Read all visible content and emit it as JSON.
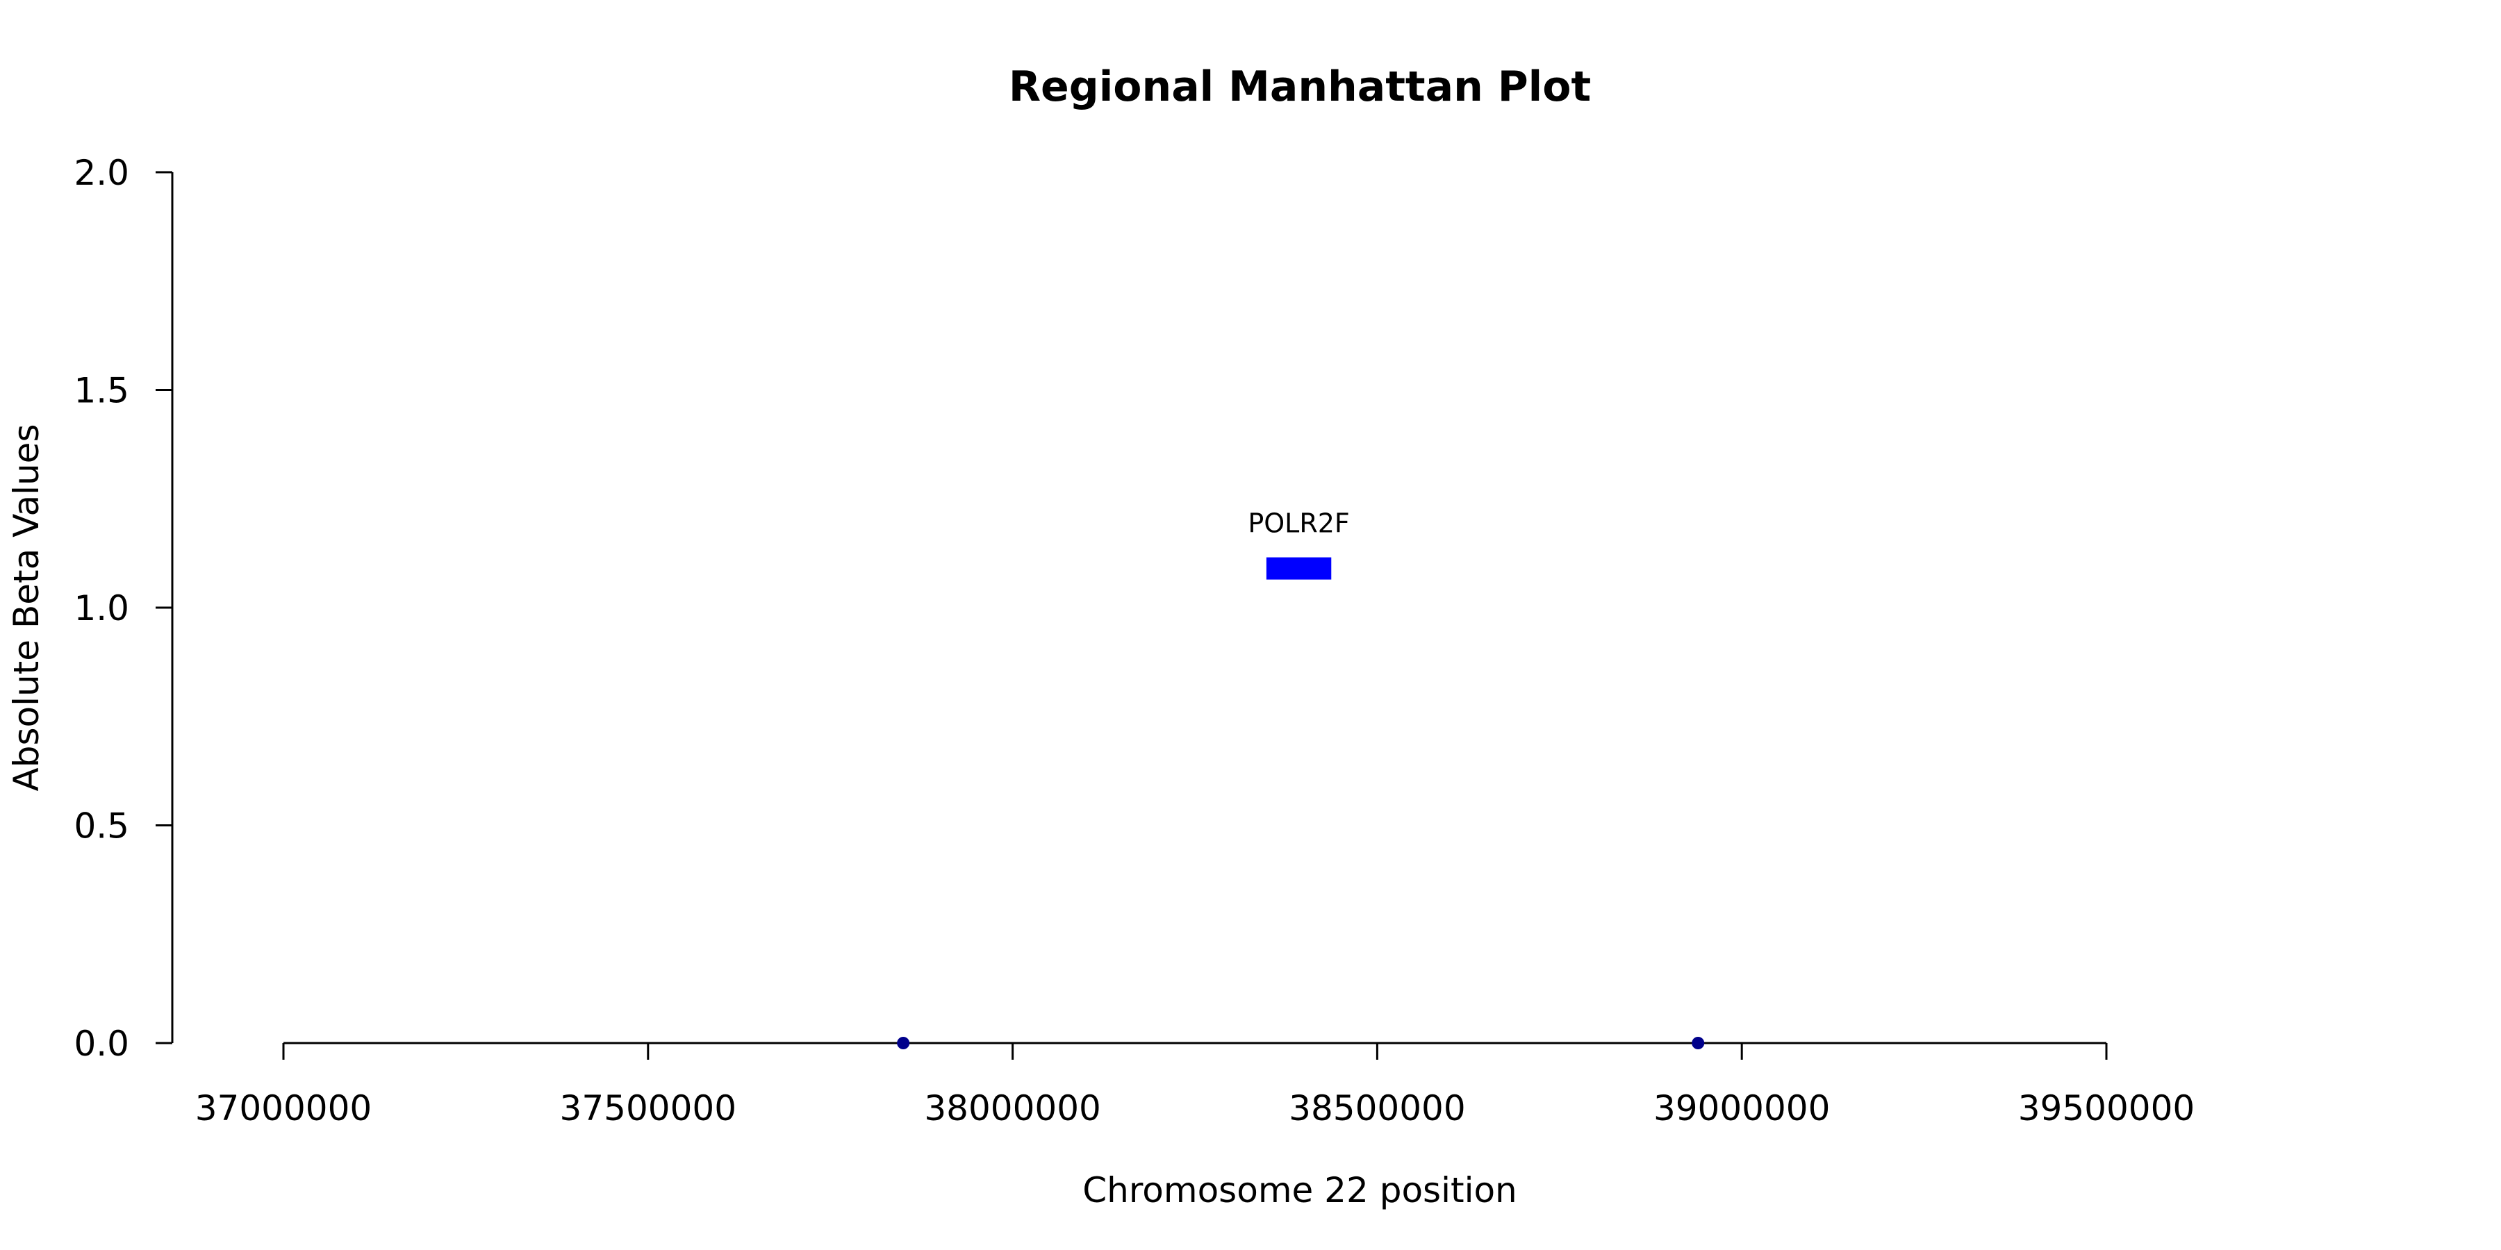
{
  "chart_data": {
    "type": "scatter",
    "title": "Regional Manhattan Plot",
    "xlabel": "Chromosome 22 position",
    "ylabel": "Absolute Beta Values",
    "xlim": [
      37000000,
      39500000
    ],
    "ylim": [
      0,
      2
    ],
    "x_ticks": [
      37000000,
      37500000,
      38000000,
      38500000,
      39000000,
      39500000
    ],
    "x_tick_labels": [
      "37000000",
      "37500000",
      "38000000",
      "38500000",
      "39000000",
      "39500000"
    ],
    "y_ticks": [
      0,
      0.5,
      1,
      1.5,
      2
    ],
    "y_tick_labels": [
      "0.0",
      "0.5",
      "1.0",
      "1.5",
      "2.0"
    ],
    "series": [
      {
        "points": [
          {
            "x": 37850000,
            "y": 0.0
          },
          {
            "x": 38940000,
            "y": 0.0
          }
        ],
        "color": "#00008B"
      }
    ],
    "gene_annotations": [
      {
        "label": "POLR2F",
        "start": 38348000,
        "end": 38437000,
        "y": 1.09,
        "color": "#0000FF"
      }
    ],
    "grid": false,
    "legend": "none"
  }
}
